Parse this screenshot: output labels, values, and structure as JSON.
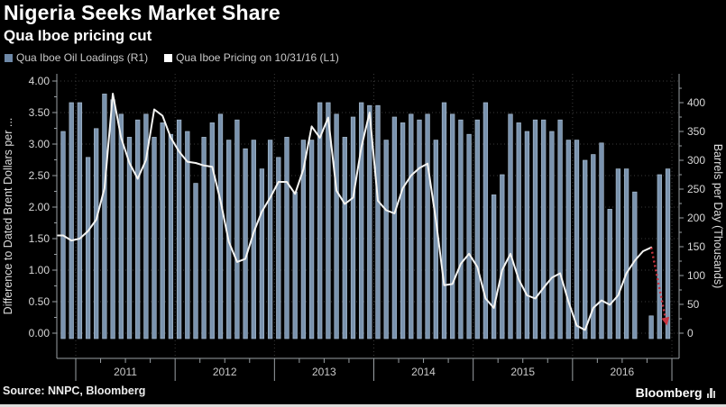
{
  "header": {
    "title": "Nigeria Seeks Market Share",
    "subtitle": "Qua Iboe pricing cut"
  },
  "legend": [
    {
      "label": "Qua Iboe Oil Loadings (R1)",
      "color": "#6e89a8"
    },
    {
      "label": "Qua Iboe Pricing on 10/31/16 (L1)",
      "color": "#ffffff"
    }
  ],
  "footer": {
    "source": "Source: NNPC, Bloomberg",
    "brand": "Bloomberg"
  },
  "colors": {
    "background": "#000000",
    "bar": "#7a93ae",
    "line": "#f4f4f2",
    "annotation_arrow": "#cb3440",
    "axis": "#9aa0a4",
    "grid": "#3a3a3a"
  },
  "chart_data": {
    "type": "bar",
    "subtype": "bar+line dual-axis",
    "months": [
      "2010-11",
      "2010-12",
      "2011-01",
      "2011-02",
      "2011-03",
      "2011-04",
      "2011-05",
      "2011-06",
      "2011-07",
      "2011-08",
      "2011-09",
      "2011-10",
      "2011-11",
      "2011-12",
      "2012-01",
      "2012-02",
      "2012-03",
      "2012-04",
      "2012-05",
      "2012-06",
      "2012-07",
      "2012-08",
      "2012-09",
      "2012-10",
      "2012-11",
      "2012-12",
      "2013-01",
      "2013-02",
      "2013-03",
      "2013-04",
      "2013-05",
      "2013-06",
      "2013-07",
      "2013-08",
      "2013-09",
      "2013-10",
      "2013-11",
      "2013-12",
      "2014-01",
      "2014-02",
      "2014-03",
      "2014-04",
      "2014-05",
      "2014-06",
      "2014-07",
      "2014-08",
      "2014-09",
      "2014-10",
      "2014-11",
      "2014-12",
      "2015-01",
      "2015-02",
      "2015-03",
      "2015-04",
      "2015-05",
      "2015-06",
      "2015-07",
      "2015-08",
      "2015-09",
      "2015-10",
      "2015-11",
      "2015-12",
      "2016-01",
      "2016-02",
      "2016-03",
      "2016-04",
      "2016-05",
      "2016-06",
      "2016-07",
      "2016-08",
      "2016-09",
      "2016-10",
      "2016-11",
      "2016-12"
    ],
    "x_years": [
      "2011",
      "2012",
      "2013",
      "2014",
      "2015",
      "2016"
    ],
    "series": [
      {
        "name": "Qua Iboe Oil Loadings (R1)",
        "type": "bar",
        "axis": "right",
        "unit": "thousand barrels per day",
        "values": [
          350,
          400,
          400,
          305,
          355,
          415,
          405,
          380,
          340,
          370,
          380,
          340,
          365,
          345,
          370,
          350,
          260,
          340,
          365,
          380,
          335,
          370,
          320,
          335,
          285,
          335,
          305,
          340,
          245,
          335,
          335,
          400,
          400,
          380,
          340,
          375,
          400,
          395,
          395,
          335,
          375,
          365,
          380,
          370,
          380,
          335,
          400,
          380,
          370,
          345,
          370,
          400,
          240,
          275,
          380,
          365,
          350,
          370,
          370,
          350,
          370,
          335,
          335,
          300,
          310,
          330,
          215,
          285,
          285,
          245,
          0,
          30,
          275,
          285
        ]
      },
      {
        "name": "Qua Iboe Pricing on 10/31/16 (L1)",
        "type": "line",
        "axis": "left",
        "unit": "dollars vs Dated Brent",
        "values": [
          1.55,
          1.47,
          1.5,
          1.62,
          1.8,
          2.3,
          3.8,
          3.1,
          2.7,
          2.45,
          2.75,
          3.55,
          3.45,
          3.1,
          2.88,
          2.72,
          2.7,
          2.66,
          2.64,
          2.1,
          1.45,
          1.13,
          1.18,
          1.6,
          1.93,
          2.15,
          2.4,
          2.4,
          2.21,
          2.6,
          3.28,
          3.1,
          3.42,
          2.26,
          2.05,
          2.15,
          2.95,
          3.5,
          2.1,
          1.95,
          1.9,
          2.3,
          2.5,
          2.62,
          2.69,
          1.8,
          0.76,
          0.78,
          1.1,
          1.26,
          1.05,
          0.55,
          0.4,
          1.0,
          1.26,
          0.85,
          0.6,
          0.55,
          0.72,
          0.88,
          0.95,
          0.5,
          0.12,
          0.05,
          0.4,
          0.52,
          0.45,
          0.6,
          0.95,
          1.15,
          1.3,
          1.36,
          null,
          null
        ]
      }
    ],
    "left_axis": {
      "label": "Difference to Dated Brent Dollars per ...",
      "range": [
        0,
        4
      ],
      "ticks": [
        0,
        0.5,
        1,
        1.5,
        2,
        2.5,
        3,
        3.5,
        4
      ]
    },
    "right_axis": {
      "label": "Barrels per Day (Thousands)",
      "range": [
        0,
        400
      ],
      "ticks": [
        0,
        50,
        100,
        150,
        200,
        250,
        300,
        350,
        400
      ]
    },
    "annotation": {
      "type": "arrow",
      "meaning": "pricing cut on 10/31/16",
      "from": {
        "month": "2016-10",
        "value": 1.36
      },
      "to": {
        "month": "2016-12",
        "value": 0.12
      }
    },
    "grid": true,
    "legend_position": "top-left"
  }
}
